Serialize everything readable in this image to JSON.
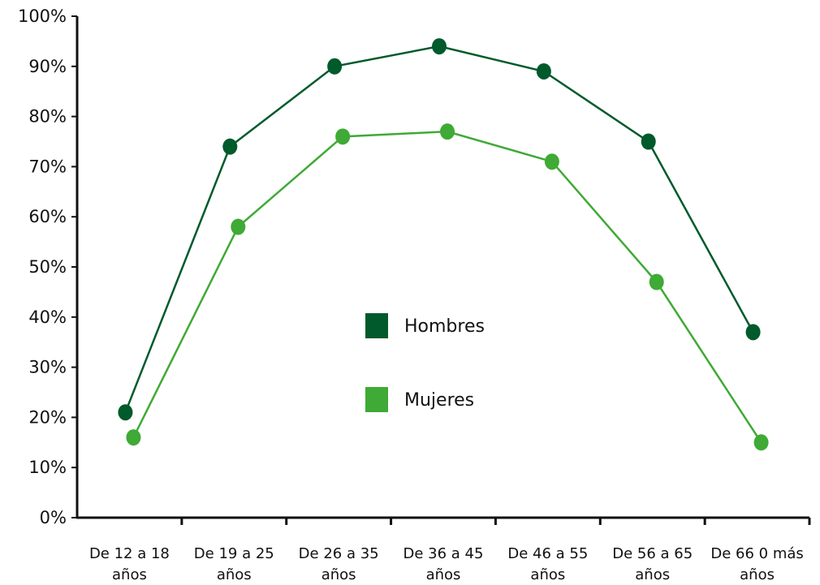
{
  "chart_data": {
    "type": "line",
    "categories": [
      [
        "De 12 a 18",
        "años"
      ],
      [
        "De 19 a 25",
        "años"
      ],
      [
        "De 26 a 35",
        "años"
      ],
      [
        "De 36 a 45",
        "años"
      ],
      [
        "De 46 a 55",
        "años"
      ],
      [
        "De 56 a 65",
        "años"
      ],
      [
        "De 66 0 más",
        "años"
      ]
    ],
    "series": [
      {
        "name": "Hombres",
        "color": "#005a2b",
        "values": [
          21,
          74,
          90,
          94,
          89,
          75,
          37
        ]
      },
      {
        "name": "Mujeres",
        "color": "#3faa35",
        "values": [
          16,
          58,
          76,
          77,
          71,
          47,
          15
        ]
      }
    ],
    "yticks": [
      "0%",
      "10%",
      "20%",
      "30%",
      "40%",
      "50%",
      "60%",
      "70%",
      "80%",
      "90%",
      "100%"
    ],
    "ylim": [
      0,
      100
    ],
    "title": "",
    "xlabel": "",
    "ylabel": "",
    "grid": false,
    "legend_position": "center"
  }
}
